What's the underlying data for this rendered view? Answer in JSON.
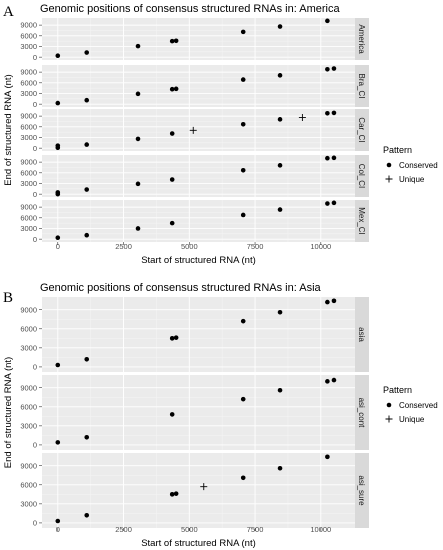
{
  "chart_data": [
    {
      "letter": "A",
      "type": "scatter",
      "title": "Genomic positions of consensus structured RNAs in: America",
      "xlabel": "Start of structured RNA (nt)",
      "ylabel": "End of structured RNA (nt)",
      "xlim": [
        -600,
        11300
      ],
      "x_ticks": [
        0,
        2500,
        5000,
        7500,
        10000
      ],
      "x_tick_labels": [
        "0",
        "2500",
        "5000",
        "7500",
        "10000"
      ],
      "ylim": [
        -800,
        11000
      ],
      "y_ticks": [
        0,
        3000,
        6000,
        9000
      ],
      "y_tick_labels": [
        "0",
        "3000",
        "6000",
        "9000"
      ],
      "legend": {
        "title": "Pattern",
        "position": "right",
        "items": [
          {
            "label": "Conserved",
            "shape": "dot"
          },
          {
            "label": "Unique",
            "shape": "plus"
          }
        ]
      },
      "panels": [
        {
          "strip": "America",
          "points": [
            {
              "x": 0,
              "y": 400,
              "pattern": "Conserved"
            },
            {
              "x": 1100,
              "y": 1300,
              "pattern": "Conserved"
            },
            {
              "x": 3050,
              "y": 3100,
              "pattern": "Conserved"
            },
            {
              "x": 4350,
              "y": 4500,
              "pattern": "Conserved"
            },
            {
              "x": 4500,
              "y": 4600,
              "pattern": "Conserved"
            },
            {
              "x": 7050,
              "y": 7100,
              "pattern": "Conserved"
            },
            {
              "x": 8450,
              "y": 8600,
              "pattern": "Conserved"
            },
            {
              "x": 10250,
              "y": 10200,
              "pattern": "Conserved"
            }
          ]
        },
        {
          "strip": "Bra_CI",
          "points": [
            {
              "x": 0,
              "y": 300,
              "pattern": "Conserved"
            },
            {
              "x": 1100,
              "y": 1100,
              "pattern": "Conserved"
            },
            {
              "x": 3050,
              "y": 2900,
              "pattern": "Conserved"
            },
            {
              "x": 4350,
              "y": 4200,
              "pattern": "Conserved"
            },
            {
              "x": 4500,
              "y": 4300,
              "pattern": "Conserved"
            },
            {
              "x": 7050,
              "y": 6900,
              "pattern": "Conserved"
            },
            {
              "x": 8450,
              "y": 8100,
              "pattern": "Conserved"
            },
            {
              "x": 10250,
              "y": 9800,
              "pattern": "Conserved"
            },
            {
              "x": 10500,
              "y": 10000,
              "pattern": "Conserved"
            }
          ]
        },
        {
          "strip": "Car_CI",
          "points": [
            {
              "x": 0,
              "y": 100,
              "pattern": "Conserved"
            },
            {
              "x": 0,
              "y": 700,
              "pattern": "Conserved"
            },
            {
              "x": 1100,
              "y": 1000,
              "pattern": "Conserved"
            },
            {
              "x": 3050,
              "y": 2600,
              "pattern": "Conserved"
            },
            {
              "x": 4350,
              "y": 4100,
              "pattern": "Conserved"
            },
            {
              "x": 5150,
              "y": 5000,
              "pattern": "Unique"
            },
            {
              "x": 7050,
              "y": 6700,
              "pattern": "Conserved"
            },
            {
              "x": 8450,
              "y": 8100,
              "pattern": "Conserved"
            },
            {
              "x": 9300,
              "y": 8600,
              "pattern": "Unique"
            },
            {
              "x": 10250,
              "y": 9800,
              "pattern": "Conserved"
            },
            {
              "x": 10500,
              "y": 9900,
              "pattern": "Conserved"
            }
          ]
        },
        {
          "strip": "Col_CI",
          "points": [
            {
              "x": 0,
              "y": 0,
              "pattern": "Conserved"
            },
            {
              "x": 0,
              "y": 500,
              "pattern": "Conserved"
            },
            {
              "x": 1100,
              "y": 1300,
              "pattern": "Conserved"
            },
            {
              "x": 3050,
              "y": 2900,
              "pattern": "Conserved"
            },
            {
              "x": 4350,
              "y": 4100,
              "pattern": "Conserved"
            },
            {
              "x": 7050,
              "y": 6700,
              "pattern": "Conserved"
            },
            {
              "x": 8450,
              "y": 8100,
              "pattern": "Conserved"
            },
            {
              "x": 10250,
              "y": 10100,
              "pattern": "Conserved"
            },
            {
              "x": 10500,
              "y": 10200,
              "pattern": "Conserved"
            }
          ]
        },
        {
          "strip": "Mex_CI",
          "points": [
            {
              "x": 0,
              "y": 400,
              "pattern": "Conserved"
            },
            {
              "x": 1100,
              "y": 1100,
              "pattern": "Conserved"
            },
            {
              "x": 3050,
              "y": 3000,
              "pattern": "Conserved"
            },
            {
              "x": 4350,
              "y": 4500,
              "pattern": "Conserved"
            },
            {
              "x": 7050,
              "y": 6800,
              "pattern": "Conserved"
            },
            {
              "x": 8450,
              "y": 8300,
              "pattern": "Conserved"
            },
            {
              "x": 10250,
              "y": 10000,
              "pattern": "Conserved"
            },
            {
              "x": 10500,
              "y": 10200,
              "pattern": "Conserved"
            }
          ]
        }
      ]
    },
    {
      "letter": "B",
      "type": "scatter",
      "title": "Genomic positions of consensus structured RNAs in: Asia",
      "xlabel": "Start of structured RNA (nt)",
      "ylabel": "End of structured RNA (nt)",
      "xlim": [
        -600,
        11300
      ],
      "x_ticks": [
        0,
        2500,
        5000,
        7500,
        10000
      ],
      "x_tick_labels": [
        "0",
        "2500",
        "5000",
        "7500",
        "10000"
      ],
      "ylim": [
        -800,
        11000
      ],
      "y_ticks": [
        0,
        3000,
        6000,
        9000
      ],
      "y_tick_labels": [
        "0",
        "3000",
        "6000",
        "9000"
      ],
      "legend": {
        "title": "Pattern",
        "position": "right",
        "items": [
          {
            "label": "Conserved",
            "shape": "dot"
          },
          {
            "label": "Unique",
            "shape": "plus"
          }
        ]
      },
      "panels": [
        {
          "strip": "asia",
          "points": [
            {
              "x": 0,
              "y": 300,
              "pattern": "Conserved"
            },
            {
              "x": 1100,
              "y": 1200,
              "pattern": "Conserved"
            },
            {
              "x": 4350,
              "y": 4500,
              "pattern": "Conserved"
            },
            {
              "x": 4500,
              "y": 4600,
              "pattern": "Conserved"
            },
            {
              "x": 7050,
              "y": 7200,
              "pattern": "Conserved"
            },
            {
              "x": 8450,
              "y": 8600,
              "pattern": "Conserved"
            },
            {
              "x": 10250,
              "y": 10200,
              "pattern": "Conserved"
            },
            {
              "x": 10500,
              "y": 10400,
              "pattern": "Conserved"
            }
          ]
        },
        {
          "strip": "asi_cont",
          "points": [
            {
              "x": 0,
              "y": 400,
              "pattern": "Conserved"
            },
            {
              "x": 1100,
              "y": 1200,
              "pattern": "Conserved"
            },
            {
              "x": 4350,
              "y": 4800,
              "pattern": "Conserved"
            },
            {
              "x": 7050,
              "y": 7200,
              "pattern": "Conserved"
            },
            {
              "x": 8450,
              "y": 8600,
              "pattern": "Conserved"
            },
            {
              "x": 10250,
              "y": 10000,
              "pattern": "Conserved"
            },
            {
              "x": 10500,
              "y": 10200,
              "pattern": "Conserved"
            }
          ]
        },
        {
          "strip": "asi_sure",
          "points": [
            {
              "x": 0,
              "y": 300,
              "pattern": "Conserved"
            },
            {
              "x": 1100,
              "y": 1200,
              "pattern": "Conserved"
            },
            {
              "x": 4350,
              "y": 4500,
              "pattern": "Conserved"
            },
            {
              "x": 4500,
              "y": 4600,
              "pattern": "Conserved"
            },
            {
              "x": 5550,
              "y": 5700,
              "pattern": "Unique"
            },
            {
              "x": 7050,
              "y": 7100,
              "pattern": "Conserved"
            },
            {
              "x": 8450,
              "y": 8600,
              "pattern": "Conserved"
            },
            {
              "x": 10250,
              "y": 10400,
              "pattern": "Conserved"
            }
          ]
        }
      ]
    }
  ]
}
